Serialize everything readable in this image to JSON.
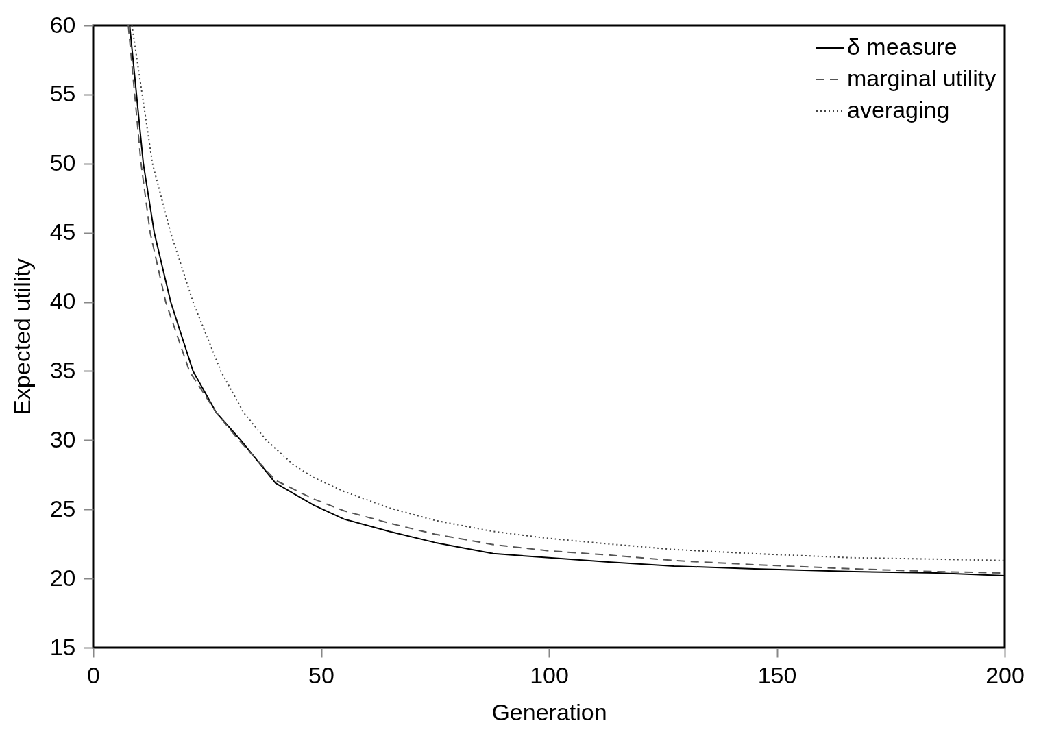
{
  "chart_data": {
    "type": "line",
    "xlabel": "Generation",
    "ylabel": "Expected utility",
    "xlim": [
      0,
      200
    ],
    "ylim": [
      15,
      60
    ],
    "xticks": [
      0,
      50,
      100,
      150,
      200
    ],
    "yticks": [
      15,
      20,
      25,
      30,
      35,
      40,
      45,
      50,
      55,
      60
    ],
    "grid": false,
    "legend": "top right",
    "series": [
      {
        "name": "δ measure",
        "color": "#000000",
        "line_style": "solid",
        "x": [
          8,
          11,
          13.4,
          17,
          21.9,
          27,
          32.4,
          40,
          48.4,
          55,
          65,
          75,
          87.8,
          100,
          113,
          127.4,
          145,
          166.9,
          185,
          200
        ],
        "values": [
          60,
          50,
          45,
          40,
          35,
          32,
          30,
          26.9,
          25.3,
          24.3,
          23.4,
          22.6,
          21.8,
          21.5,
          21.2,
          20.9,
          20.7,
          20.5,
          20.4,
          20.2
        ]
      },
      {
        "name": "marginal utility",
        "color": "#555555",
        "line_style": "dashed",
        "x": [
          7.7,
          10.5,
          12.5,
          15.9,
          21.1,
          27,
          32,
          40,
          48.4,
          55,
          65,
          75,
          87.8,
          100,
          113,
          127.4,
          145,
          166.9,
          185,
          200
        ],
        "values": [
          60,
          50,
          45,
          40,
          35,
          32,
          30,
          27.1,
          25.75,
          24.9,
          24,
          23.2,
          22.45,
          22,
          21.7,
          21.3,
          21,
          20.7,
          20.5,
          20.4
        ]
      },
      {
        "name": "averaging",
        "color": "#444444",
        "line_style": "dotted",
        "x": [
          8.5,
          13,
          17,
          21.9,
          28,
          33,
          38,
          44,
          48.4,
          55,
          65,
          75,
          87.8,
          100,
          113,
          127.4,
          145,
          166.9,
          185,
          200
        ],
        "values": [
          60,
          50,
          45,
          40,
          35,
          32,
          30,
          28.2,
          27.3,
          26.3,
          25.1,
          24.2,
          23.4,
          22.9,
          22.5,
          22.1,
          21.8,
          21.5,
          21.4,
          21.3
        ]
      }
    ]
  }
}
